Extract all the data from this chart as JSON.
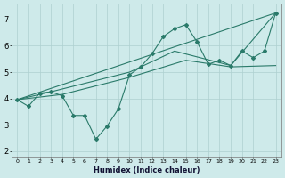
{
  "xlabel": "Humidex (Indice chaleur)",
  "bg_color": "#ceeaea",
  "grid_color": "#aed0d0",
  "line_color": "#2a7a6a",
  "xlim": [
    -0.5,
    23.5
  ],
  "ylim": [
    1.8,
    7.6
  ],
  "yticks": [
    2,
    3,
    4,
    5,
    6,
    7
  ],
  "xticks": [
    0,
    1,
    2,
    3,
    4,
    5,
    6,
    7,
    8,
    9,
    10,
    11,
    12,
    13,
    14,
    15,
    16,
    17,
    18,
    19,
    20,
    21,
    22,
    23
  ],
  "line1_x": [
    0,
    1,
    2,
    3,
    4,
    5,
    6,
    7,
    8,
    9,
    10,
    11,
    12,
    13,
    14,
    15,
    16,
    17,
    18,
    19,
    20,
    21,
    22,
    23
  ],
  "line1_y": [
    3.95,
    3.7,
    4.2,
    4.25,
    4.1,
    3.35,
    3.35,
    2.45,
    2.95,
    3.6,
    4.9,
    5.2,
    5.7,
    6.35,
    6.65,
    6.8,
    6.15,
    5.3,
    5.45,
    5.25,
    5.8,
    5.55,
    5.8,
    7.25
  ],
  "line2_x": [
    0,
    23
  ],
  "line2_y": [
    3.95,
    7.25
  ],
  "line3_x": [
    0,
    3,
    10,
    14,
    19,
    23
  ],
  "line3_y": [
    3.95,
    4.25,
    5.0,
    5.8,
    5.25,
    7.25
  ],
  "line4_x": [
    0,
    4,
    10,
    15,
    19,
    23
  ],
  "line4_y": [
    3.95,
    4.15,
    4.8,
    5.45,
    5.2,
    5.25
  ]
}
